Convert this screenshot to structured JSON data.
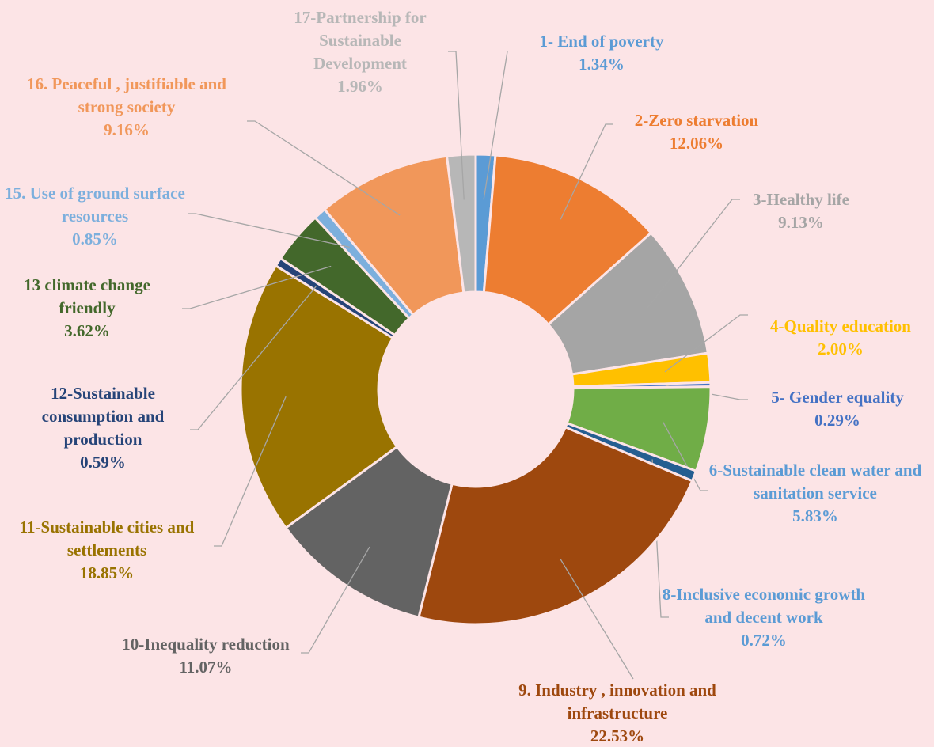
{
  "chart_data": {
    "type": "donut",
    "categories": [
      "1- End of poverty",
      "2-Zero starvation",
      "3-Healthy life",
      "4-Quality education",
      "5- Gender equality",
      "6-Sustainable clean water and sanitation service",
      "8-Inclusive economic growth and decent work",
      "9. Industry , innovation and infrastructure",
      "10-Inequality reduction",
      "11-Sustainable cities and settlements",
      "12-Sustainable consumption and production",
      "13 climate change friendly",
      "15. Use of ground surface resources",
      "16. Peaceful , justifiable and strong society",
      "17-Partnership for Sustainable Development"
    ],
    "values": [
      1.34,
      12.06,
      9.13,
      2.0,
      0.29,
      5.83,
      0.72,
      22.53,
      11.07,
      18.85,
      0.59,
      3.62,
      0.85,
      9.16,
      1.96
    ],
    "value_labels": [
      "1.34%",
      "12.06%",
      "9.13%",
      "2.00%",
      "0.29%",
      "5.83%",
      "0.72%",
      "22.53%",
      "11.07%",
      "18.85%",
      "0.59%",
      "3.62%",
      "0.85%",
      "9.16%",
      "1.96%"
    ],
    "colors": [
      "#5b9bd5",
      "#ed7d31",
      "#a5a5a5",
      "#ffc000",
      "#4472c4",
      "#70ad47",
      "#255e91",
      "#9e480e",
      "#636363",
      "#997300",
      "#264478",
      "#43682b",
      "#7cafdd",
      "#f1975a",
      "#b7b7b7"
    ],
    "label_colors": [
      "#5b9bd5",
      "#ed7d31",
      "#a5a5a5",
      "#ffc000",
      "#4472c4",
      "#5b9bd5",
      "#5b9bd5",
      "#9e480e",
      "#636363",
      "#997300",
      "#264478",
      "#43682b",
      "#7cafdd",
      "#f1975a",
      "#b7b7b7"
    ]
  }
}
